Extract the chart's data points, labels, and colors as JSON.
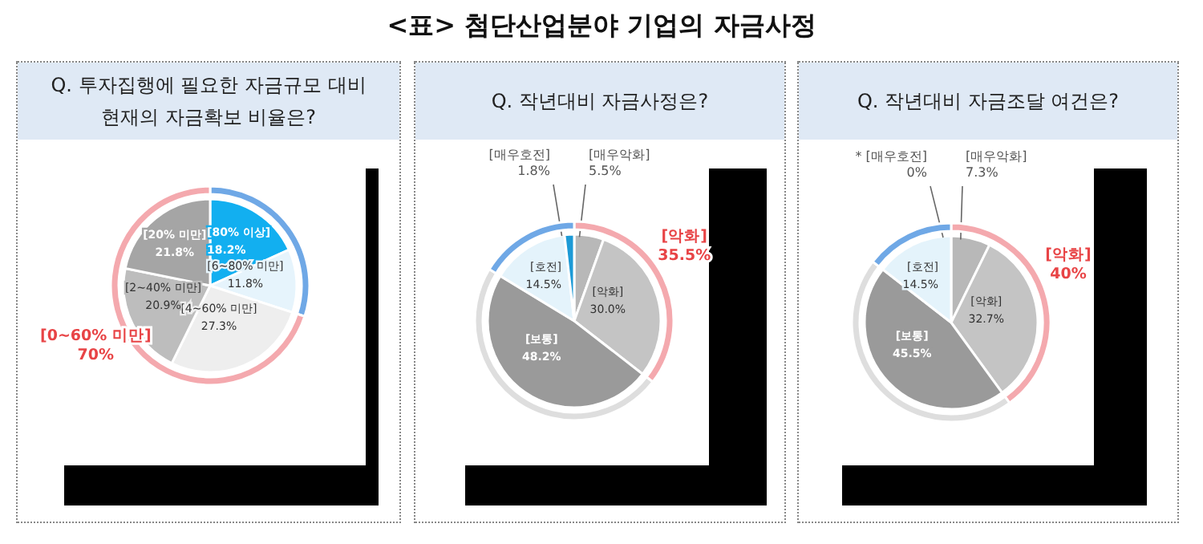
{
  "chart_data": [
    {
      "type": "pie",
      "title": "Q. 투자집행에 필요한 자금규모 대비 현재의 자금확보 비율은?",
      "annotations": [
        "<표> 첨단산업분야 기업의 자금사정"
      ],
      "categories": [
        "[80% 이상]",
        "[6~80% 미만]",
        "[4~60% 미만]",
        "[2~40% 미만]",
        "[20% 미만]"
      ],
      "values": [
        18.2,
        11.8,
        27.3,
        20.9,
        21.8
      ],
      "colors": [
        "#12aff0",
        "#e6f4fc",
        "#eeeeee",
        "#bdbdbd",
        "#a5a5a5"
      ],
      "value_labels": [
        "18.2%",
        "11.8%",
        "27.3%",
        "20.9%",
        "21.8%"
      ]
    },
    {
      "type": "donut",
      "categories": [
        null,
        "[0~60% 미만]"
      ],
      "values": [
        30,
        70
      ],
      "colors": [
        "#6fa8e6",
        "#f4a9ae"
      ],
      "value_labels": [
        null,
        "70%"
      ]
    },
    {
      "type": "pie",
      "title": "Q. 작년대비 자금사정은?",
      "categories": [
        "[매우악화]",
        "[악화]",
        "[보통]",
        "[호전]",
        "[매우호전]"
      ],
      "values": [
        5.5,
        30.0,
        48.2,
        14.5,
        1.8
      ],
      "colors": [
        "#b8b8b8",
        "#c4c4c4",
        "#9a9a9a",
        "#e4f3fb",
        "#1c9ad6"
      ],
      "value_labels": [
        "5.5%",
        "30.0%",
        "48.2%",
        "14.5%",
        "1.8%"
      ]
    },
    {
      "type": "donut",
      "categories": [
        "[악화]",
        null,
        null
      ],
      "values": [
        35.5,
        48.2,
        16.3
      ],
      "colors": [
        "#f4a9ae",
        "#dedede",
        "#6fa8e6"
      ],
      "value_labels": [
        "35.5%",
        null,
        null
      ]
    },
    {
      "type": "pie",
      "title": "Q. 작년대비 자금조달 여건은?",
      "categories": [
        "[매우악화]",
        "[악화]",
        "[보통]",
        "[호전]",
        "* [매우호전]"
      ],
      "values": [
        7.3,
        32.7,
        45.5,
        14.5,
        0
      ],
      "colors": [
        "#b8b8b8",
        "#c4c4c4",
        "#9a9a9a",
        "#e4f3fb",
        "#1c9ad6"
      ],
      "value_labels": [
        "7.3%",
        "32.7%",
        "45.5%",
        "14.5%",
        "0%"
      ]
    },
    {
      "type": "donut",
      "categories": [
        "[악화]",
        null,
        null
      ],
      "values": [
        40,
        45.5,
        14.5
      ],
      "colors": [
        "#f4a9ae",
        "#dedede",
        "#6fa8e6"
      ],
      "value_labels": [
        "40%",
        null,
        null
      ]
    }
  ]
}
